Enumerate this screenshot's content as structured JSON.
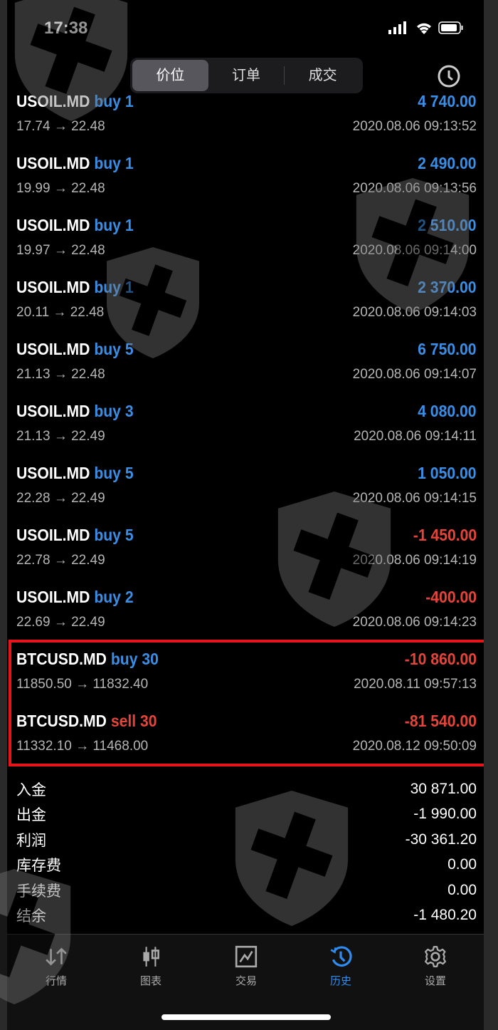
{
  "status": {
    "time": "17:38"
  },
  "segments": [
    "价位",
    "订单",
    "成交"
  ],
  "active_segment": 0,
  "trades": [
    {
      "symbol": "USOIL.MD",
      "side": "buy",
      "volume": "1",
      "label": "buy 1",
      "prices": "17.74 → 22.48",
      "profit": "4 740.00",
      "time": "2020.08.06 09:13:52"
    },
    {
      "symbol": "USOIL.MD",
      "side": "buy",
      "label": "buy 1",
      "prices": "19.99 → 22.48",
      "profit": "2 490.00",
      "time": "2020.08.06 09:13:56"
    },
    {
      "symbol": "USOIL.MD",
      "side": "buy",
      "label": "buy 1",
      "prices": "19.97 → 22.48",
      "profit": "2 510.00",
      "time": "2020.08.06 09:14:00"
    },
    {
      "symbol": "USOIL.MD",
      "side": "buy",
      "label": "buy 1",
      "prices": "20.11 → 22.48",
      "profit": "2 370.00",
      "time": "2020.08.06 09:14:03"
    },
    {
      "symbol": "USOIL.MD",
      "side": "buy",
      "label": "buy 5",
      "prices": "21.13 → 22.48",
      "profit": "6 750.00",
      "time": "2020.08.06 09:14:07"
    },
    {
      "symbol": "USOIL.MD",
      "side": "buy",
      "label": "buy 3",
      "prices": "21.13 → 22.49",
      "profit": "4 080.00",
      "time": "2020.08.06 09:14:11"
    },
    {
      "symbol": "USOIL.MD",
      "side": "buy",
      "label": "buy 5",
      "prices": "22.28 → 22.49",
      "profit": "1 050.00",
      "time": "2020.08.06 09:14:15"
    },
    {
      "symbol": "USOIL.MD",
      "side": "buy",
      "label": "buy 5",
      "prices": "22.78 → 22.49",
      "profit": "-1 450.00",
      "time": "2020.08.06 09:14:19"
    },
    {
      "symbol": "USOIL.MD",
      "side": "buy",
      "label": "buy 2",
      "prices": "22.69 → 22.49",
      "profit": "-400.00",
      "time": "2020.08.06 09:14:23"
    },
    {
      "symbol": "BTCUSD.MD",
      "side": "buy",
      "label": "buy 30",
      "prices": "11850.50 → 11832.40",
      "profit": "-10 860.00",
      "time": "2020.08.11 09:57:13"
    },
    {
      "symbol": "BTCUSD.MD",
      "side": "sell",
      "label": "sell 30",
      "prices": "11332.10 → 11468.00",
      "profit": "-81 540.00",
      "time": "2020.08.12 09:50:09"
    }
  ],
  "summary": [
    {
      "label": "入金",
      "value": "30 871.00"
    },
    {
      "label": "出金",
      "value": "-1 990.00"
    },
    {
      "label": "利润",
      "value": "-30 361.20"
    },
    {
      "label": "库存费",
      "value": "0.00"
    },
    {
      "label": "手续费",
      "value": "0.00"
    },
    {
      "label": "结余",
      "value": "-1 480.20"
    }
  ],
  "nav": [
    {
      "label": "行情",
      "icon": "arrows-icon"
    },
    {
      "label": "图表",
      "icon": "candlestick-icon"
    },
    {
      "label": "交易",
      "icon": "trade-chart-icon"
    },
    {
      "label": "历史",
      "icon": "history-icon"
    },
    {
      "label": "设置",
      "icon": "gear-icon"
    }
  ],
  "active_nav": 3,
  "colors": {
    "buy": "#3a8ee6",
    "sell": "#e5443b",
    "profit_positive": "#3a8ee6",
    "profit_negative": "#e5443b",
    "highlight": "#e8141c",
    "active": "#2f8cf0"
  }
}
